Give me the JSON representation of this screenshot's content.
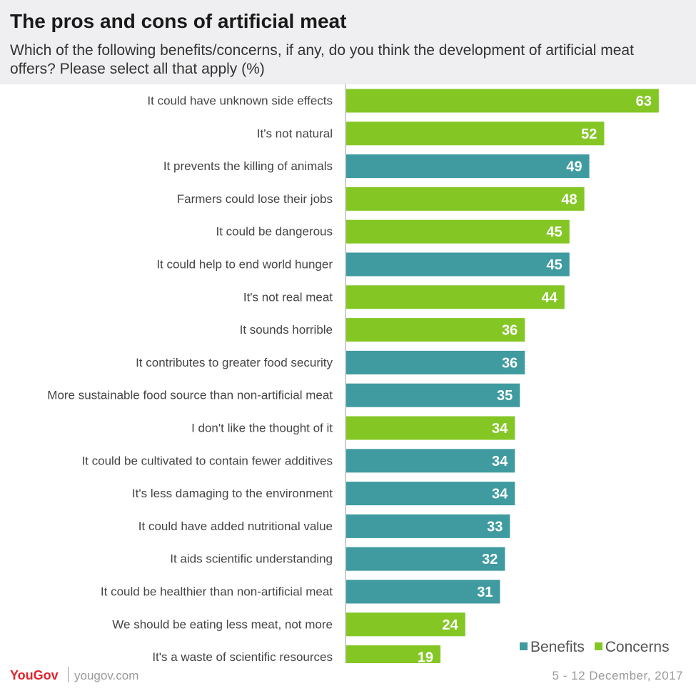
{
  "title": "The pros and cons of artificial meat",
  "subtitle": "Which of the following benefits/concerns, if any, do you think the development of artificial meat offers? Please select all that apply (%)",
  "legend": {
    "benefits": "Benefits",
    "concerns": "Concerns"
  },
  "footer": {
    "brand": "YouGov",
    "url": "yougov.com",
    "date": "5 - 12 December, 2017"
  },
  "colors": {
    "benefits": "#3f9b9f",
    "concerns": "#84c725",
    "axis": "#cccccc"
  },
  "chart_data": {
    "type": "bar",
    "orientation": "horizontal",
    "categories": [
      "It could have unknown side effects",
      "It's not natural",
      "It prevents the killing of animals",
      "Farmers could lose their jobs",
      "It could be dangerous",
      "It could help to end world hunger",
      "It's not real meat",
      "It sounds horrible",
      "It contributes to greater food security",
      "More sustainable food source than non-artificial meat",
      "I don't like the thought of it",
      "It could be cultivated to contain fewer additives",
      "It's less damaging to the environment",
      "It could have added nutritional value",
      "It aids scientific understanding",
      "It could be healthier than non-artificial meat",
      "We should be eating less meat, not more",
      "It's a waste of scientific resources"
    ],
    "values": [
      63,
      52,
      49,
      48,
      45,
      45,
      44,
      36,
      36,
      35,
      34,
      34,
      34,
      33,
      32,
      31,
      24,
      19
    ],
    "groups": [
      "Concerns",
      "Concerns",
      "Benefits",
      "Concerns",
      "Concerns",
      "Benefits",
      "Concerns",
      "Concerns",
      "Benefits",
      "Benefits",
      "Concerns",
      "Benefits",
      "Benefits",
      "Benefits",
      "Benefits",
      "Benefits",
      "Concerns",
      "Concerns"
    ],
    "series": [
      {
        "name": "Benefits"
      },
      {
        "name": "Concerns"
      }
    ],
    "xlim": [
      0,
      70
    ],
    "legend_position": "bottom-right"
  }
}
